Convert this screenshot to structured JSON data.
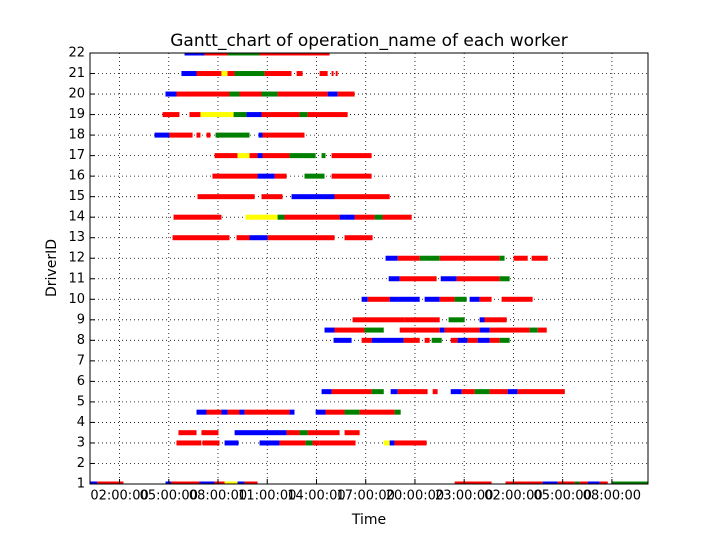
{
  "chart_data": {
    "type": "gantt",
    "title": "Gantt_chart of operation_name of each worker",
    "x_label": "Time",
    "y_label": "DriverID",
    "xlim": [
      0.2,
      34.2
    ],
    "ylim": [
      1,
      22
    ],
    "xticks": [
      {
        "value": 2,
        "label": "02:00:00"
      },
      {
        "value": 5,
        "label": "05:00:00"
      },
      {
        "value": 8,
        "label": "08:00:00"
      },
      {
        "value": 11,
        "label": "11:00:00"
      },
      {
        "value": 14,
        "label": "14:00:00"
      },
      {
        "value": 17,
        "label": "17:00:00"
      },
      {
        "value": 20,
        "label": "20:00:00"
      },
      {
        "value": 23,
        "label": "23:00:00"
      },
      {
        "value": 26,
        "label": "02:00:00"
      },
      {
        "value": 29,
        "label": "05:00:00"
      },
      {
        "value": 32,
        "label": "08:00:00"
      }
    ],
    "yticks": [
      1,
      2,
      3,
      4,
      5,
      6,
      7,
      8,
      9,
      10,
      11,
      12,
      13,
      14,
      15,
      16,
      17,
      18,
      19,
      20,
      21,
      22
    ],
    "grid": true,
    "rows": [
      {
        "y": 1,
        "segments": [
          [
            0.2,
            0.65,
            "blue"
          ],
          [
            0.65,
            2.24,
            "red"
          ],
          [
            4.8,
            5.16,
            "blue"
          ],
          [
            5.16,
            6.87,
            "red"
          ],
          [
            6.87,
            7.79,
            "blue"
          ],
          [
            7.79,
            8.4,
            "red"
          ],
          [
            8.4,
            9.19,
            "yellow"
          ],
          [
            9.19,
            9.62,
            "blue"
          ],
          [
            9.62,
            10.41,
            "red"
          ],
          [
            22.42,
            24.67,
            "red"
          ],
          [
            25.52,
            27.78,
            "red"
          ],
          [
            27.78,
            28.7,
            "blue"
          ],
          [
            28.7,
            29.74,
            "red"
          ],
          [
            29.74,
            30.04,
            "green"
          ],
          [
            30.04,
            30.53,
            "red"
          ],
          [
            30.53,
            31.26,
            "blue"
          ],
          [
            31.26,
            31.75,
            "red"
          ],
          [
            32.0,
            34.2,
            "green"
          ]
        ]
      },
      {
        "y": 3,
        "segments": [
          [
            5.47,
            6.99,
            "red"
          ],
          [
            7.05,
            8.09,
            "red"
          ],
          [
            8.4,
            9.25,
            "blue"
          ],
          [
            10.53,
            11.75,
            "blue"
          ],
          [
            11.75,
            13.34,
            "red"
          ],
          [
            13.34,
            13.76,
            "green"
          ],
          [
            13.76,
            14.19,
            "red"
          ],
          [
            14.19,
            16.38,
            "red"
          ],
          [
            18.1,
            18.46,
            "yellow"
          ],
          [
            18.46,
            18.76,
            "blue"
          ],
          [
            18.76,
            20.71,
            "red"
          ]
        ]
      },
      {
        "y": 3.5,
        "segments": [
          [
            5.59,
            6.69,
            "red"
          ],
          [
            6.99,
            8.03,
            "red"
          ],
          [
            9.01,
            12.18,
            "blue"
          ],
          [
            12.18,
            12.97,
            "red"
          ],
          [
            12.97,
            13.46,
            "green"
          ],
          [
            13.46,
            15.41,
            "red"
          ],
          [
            15.71,
            16.63,
            "red"
          ]
        ]
      },
      {
        "y": 4.5,
        "segments": [
          [
            6.69,
            7.3,
            "blue"
          ],
          [
            7.3,
            8.21,
            "red"
          ],
          [
            8.21,
            8.58,
            "blue"
          ],
          [
            8.58,
            9.31,
            "red"
          ],
          [
            9.31,
            9.62,
            "blue"
          ],
          [
            9.62,
            12.36,
            "red"
          ],
          [
            12.36,
            12.66,
            "blue"
          ],
          [
            13.95,
            14.55,
            "blue"
          ],
          [
            14.55,
            15.71,
            "red"
          ],
          [
            15.71,
            16.63,
            "green"
          ],
          [
            16.63,
            18.76,
            "red"
          ],
          [
            18.76,
            19.13,
            "green"
          ]
        ]
      },
      {
        "y": 5.5,
        "segments": [
          [
            14.31,
            14.92,
            "blue"
          ],
          [
            14.92,
            17.36,
            "red"
          ],
          [
            17.36,
            18.1,
            "green"
          ],
          [
            18.52,
            18.95,
            "blue"
          ],
          [
            18.95,
            20.77,
            "red"
          ],
          [
            21.08,
            21.38,
            "red"
          ],
          [
            22.18,
            22.85,
            "blue"
          ],
          [
            22.85,
            23.64,
            "red"
          ],
          [
            23.64,
            24.55,
            "green"
          ],
          [
            24.55,
            25.65,
            "red"
          ],
          [
            25.65,
            26.26,
            "blue"
          ],
          [
            26.26,
            29.13,
            "red"
          ]
        ]
      },
      {
        "y": 8,
        "segments": [
          [
            15.04,
            16.14,
            "blue"
          ],
          [
            16.75,
            17.36,
            "red"
          ],
          [
            17.36,
            19.31,
            "blue"
          ],
          [
            19.31,
            20.29,
            "red"
          ],
          [
            20.59,
            20.9,
            "red"
          ],
          [
            21.02,
            21.63,
            "green"
          ],
          [
            22.18,
            22.6,
            "red"
          ],
          [
            22.6,
            23.21,
            "blue"
          ],
          [
            23.21,
            23.82,
            "red"
          ],
          [
            23.82,
            24.55,
            "blue"
          ],
          [
            24.55,
            25.16,
            "red"
          ],
          [
            25.16,
            25.77,
            "green"
          ]
        ]
      },
      {
        "y": 8.5,
        "segments": [
          [
            14.49,
            15.1,
            "blue"
          ],
          [
            15.1,
            16.93,
            "red"
          ],
          [
            16.93,
            18.1,
            "green"
          ],
          [
            19.07,
            21.51,
            "red"
          ],
          [
            21.51,
            21.81,
            "blue"
          ],
          [
            21.81,
            23.94,
            "red"
          ],
          [
            23.94,
            24.55,
            "blue"
          ],
          [
            24.55,
            26.99,
            "red"
          ],
          [
            26.99,
            27.48,
            "green"
          ],
          [
            27.48,
            28.03,
            "red"
          ]
        ]
      },
      {
        "y": 9,
        "segments": [
          [
            16.2,
            19.37,
            "red"
          ],
          [
            19.37,
            21.51,
            "red"
          ],
          [
            22.05,
            23.03,
            "green"
          ],
          [
            23.94,
            24.24,
            "blue"
          ],
          [
            24.24,
            25.59,
            "red"
          ]
        ]
      },
      {
        "y": 10,
        "segments": [
          [
            16.75,
            17.12,
            "blue"
          ],
          [
            17.12,
            18.46,
            "red"
          ],
          [
            18.46,
            20.29,
            "blue"
          ],
          [
            20.59,
            21.51,
            "blue"
          ],
          [
            21.51,
            22.42,
            "red"
          ],
          [
            22.42,
            23.15,
            "green"
          ],
          [
            23.33,
            23.94,
            "blue"
          ],
          [
            23.94,
            24.67,
            "red"
          ],
          [
            25.28,
            27.17,
            "red"
          ]
        ]
      },
      {
        "y": 11,
        "segments": [
          [
            18.4,
            19.07,
            "blue"
          ],
          [
            19.07,
            21.32,
            "red"
          ],
          [
            21.57,
            22.54,
            "blue"
          ],
          [
            22.54,
            25.16,
            "red"
          ],
          [
            25.16,
            25.77,
            "green"
          ]
        ]
      },
      {
        "y": 12,
        "segments": [
          [
            18.21,
            18.95,
            "blue"
          ],
          [
            18.95,
            20.29,
            "red"
          ],
          [
            20.29,
            21.51,
            "green"
          ],
          [
            21.51,
            25.16,
            "red"
          ],
          [
            25.16,
            25.46,
            "green"
          ],
          [
            26.01,
            26.87,
            "red"
          ],
          [
            27.11,
            28.09,
            "red"
          ]
        ]
      },
      {
        "y": 13,
        "segments": [
          [
            5.23,
            8.7,
            "red"
          ],
          [
            9.13,
            9.92,
            "red"
          ],
          [
            9.92,
            11.02,
            "blue"
          ],
          [
            11.02,
            15.1,
            "red"
          ],
          [
            15.71,
            17.42,
            "red"
          ]
        ]
      },
      {
        "y": 14,
        "segments": [
          [
            5.29,
            8.21,
            "red"
          ],
          [
            9.68,
            11.63,
            "yellow"
          ],
          [
            11.63,
            12.05,
            "green"
          ],
          [
            12.05,
            15.41,
            "red"
          ],
          [
            15.41,
            16.32,
            "blue"
          ],
          [
            16.32,
            17.55,
            "red"
          ],
          [
            17.55,
            18.03,
            "green"
          ],
          [
            18.03,
            19.8,
            "red"
          ]
        ]
      },
      {
        "y": 15,
        "segments": [
          [
            6.75,
            10.23,
            "red"
          ],
          [
            10.65,
            11.93,
            "red"
          ],
          [
            12.48,
            15.1,
            "blue"
          ],
          [
            15.1,
            18.46,
            "red"
          ]
        ]
      },
      {
        "y": 16,
        "segments": [
          [
            7.66,
            10.41,
            "red"
          ],
          [
            10.41,
            11.45,
            "blue"
          ],
          [
            11.45,
            12.18,
            "red"
          ],
          [
            13.27,
            14.49,
            "green"
          ],
          [
            14.92,
            17.36,
            "red"
          ]
        ]
      },
      {
        "y": 17,
        "segments": [
          [
            7.79,
            9.19,
            "red"
          ],
          [
            9.19,
            9.92,
            "yellow"
          ],
          [
            9.92,
            10.41,
            "red"
          ],
          [
            10.41,
            10.71,
            "blue"
          ],
          [
            10.71,
            12.36,
            "red"
          ],
          [
            12.36,
            13.95,
            "green"
          ],
          [
            14.31,
            14.55,
            "green"
          ],
          [
            14.92,
            17.36,
            "red"
          ]
        ]
      },
      {
        "y": 18,
        "segments": [
          [
            4.13,
            5.04,
            "blue"
          ],
          [
            5.04,
            6.45,
            "red"
          ],
          [
            6.69,
            6.93,
            "red"
          ],
          [
            7.3,
            7.54,
            "red"
          ],
          [
            7.85,
            9.92,
            "green"
          ],
          [
            10.47,
            10.71,
            "blue"
          ],
          [
            10.71,
            13.27,
            "red"
          ]
        ]
      },
      {
        "y": 19,
        "segments": [
          [
            4.62,
            5.65,
            "red"
          ],
          [
            6.26,
            6.93,
            "red"
          ],
          [
            6.93,
            8.95,
            "yellow"
          ],
          [
            8.95,
            9.74,
            "green"
          ],
          [
            9.74,
            10.65,
            "blue"
          ],
          [
            10.65,
            12.97,
            "red"
          ],
          [
            12.97,
            13.46,
            "green"
          ],
          [
            13.46,
            13.88,
            "red"
          ],
          [
            13.88,
            15.9,
            "red"
          ]
        ]
      },
      {
        "y": 20,
        "segments": [
          [
            4.8,
            5.47,
            "blue"
          ],
          [
            5.47,
            8.7,
            "red"
          ],
          [
            8.7,
            9.31,
            "green"
          ],
          [
            9.31,
            10.65,
            "red"
          ],
          [
            10.65,
            11.63,
            "green"
          ],
          [
            11.63,
            14.68,
            "red"
          ],
          [
            14.68,
            15.29,
            "blue"
          ],
          [
            15.29,
            16.32,
            "red"
          ]
        ]
      },
      {
        "y": 21,
        "segments": [
          [
            5.77,
            6.69,
            "blue"
          ],
          [
            6.69,
            8.21,
            "red"
          ],
          [
            8.21,
            8.58,
            "yellow"
          ],
          [
            8.58,
            9.01,
            "red"
          ],
          [
            9.01,
            10.84,
            "green"
          ],
          [
            10.84,
            12.48,
            "red"
          ],
          [
            12.79,
            13.15,
            "red"
          ],
          [
            14.19,
            14.68,
            "red"
          ],
          [
            14.92,
            15.04,
            "red"
          ],
          [
            15.17,
            15.29,
            "red"
          ]
        ]
      },
      {
        "y": 22,
        "segments": [
          [
            5.96,
            7.18,
            "blue"
          ],
          [
            7.18,
            8.58,
            "red"
          ],
          [
            8.58,
            10.53,
            "green"
          ],
          [
            10.53,
            14.8,
            "red"
          ]
        ]
      }
    ]
  }
}
